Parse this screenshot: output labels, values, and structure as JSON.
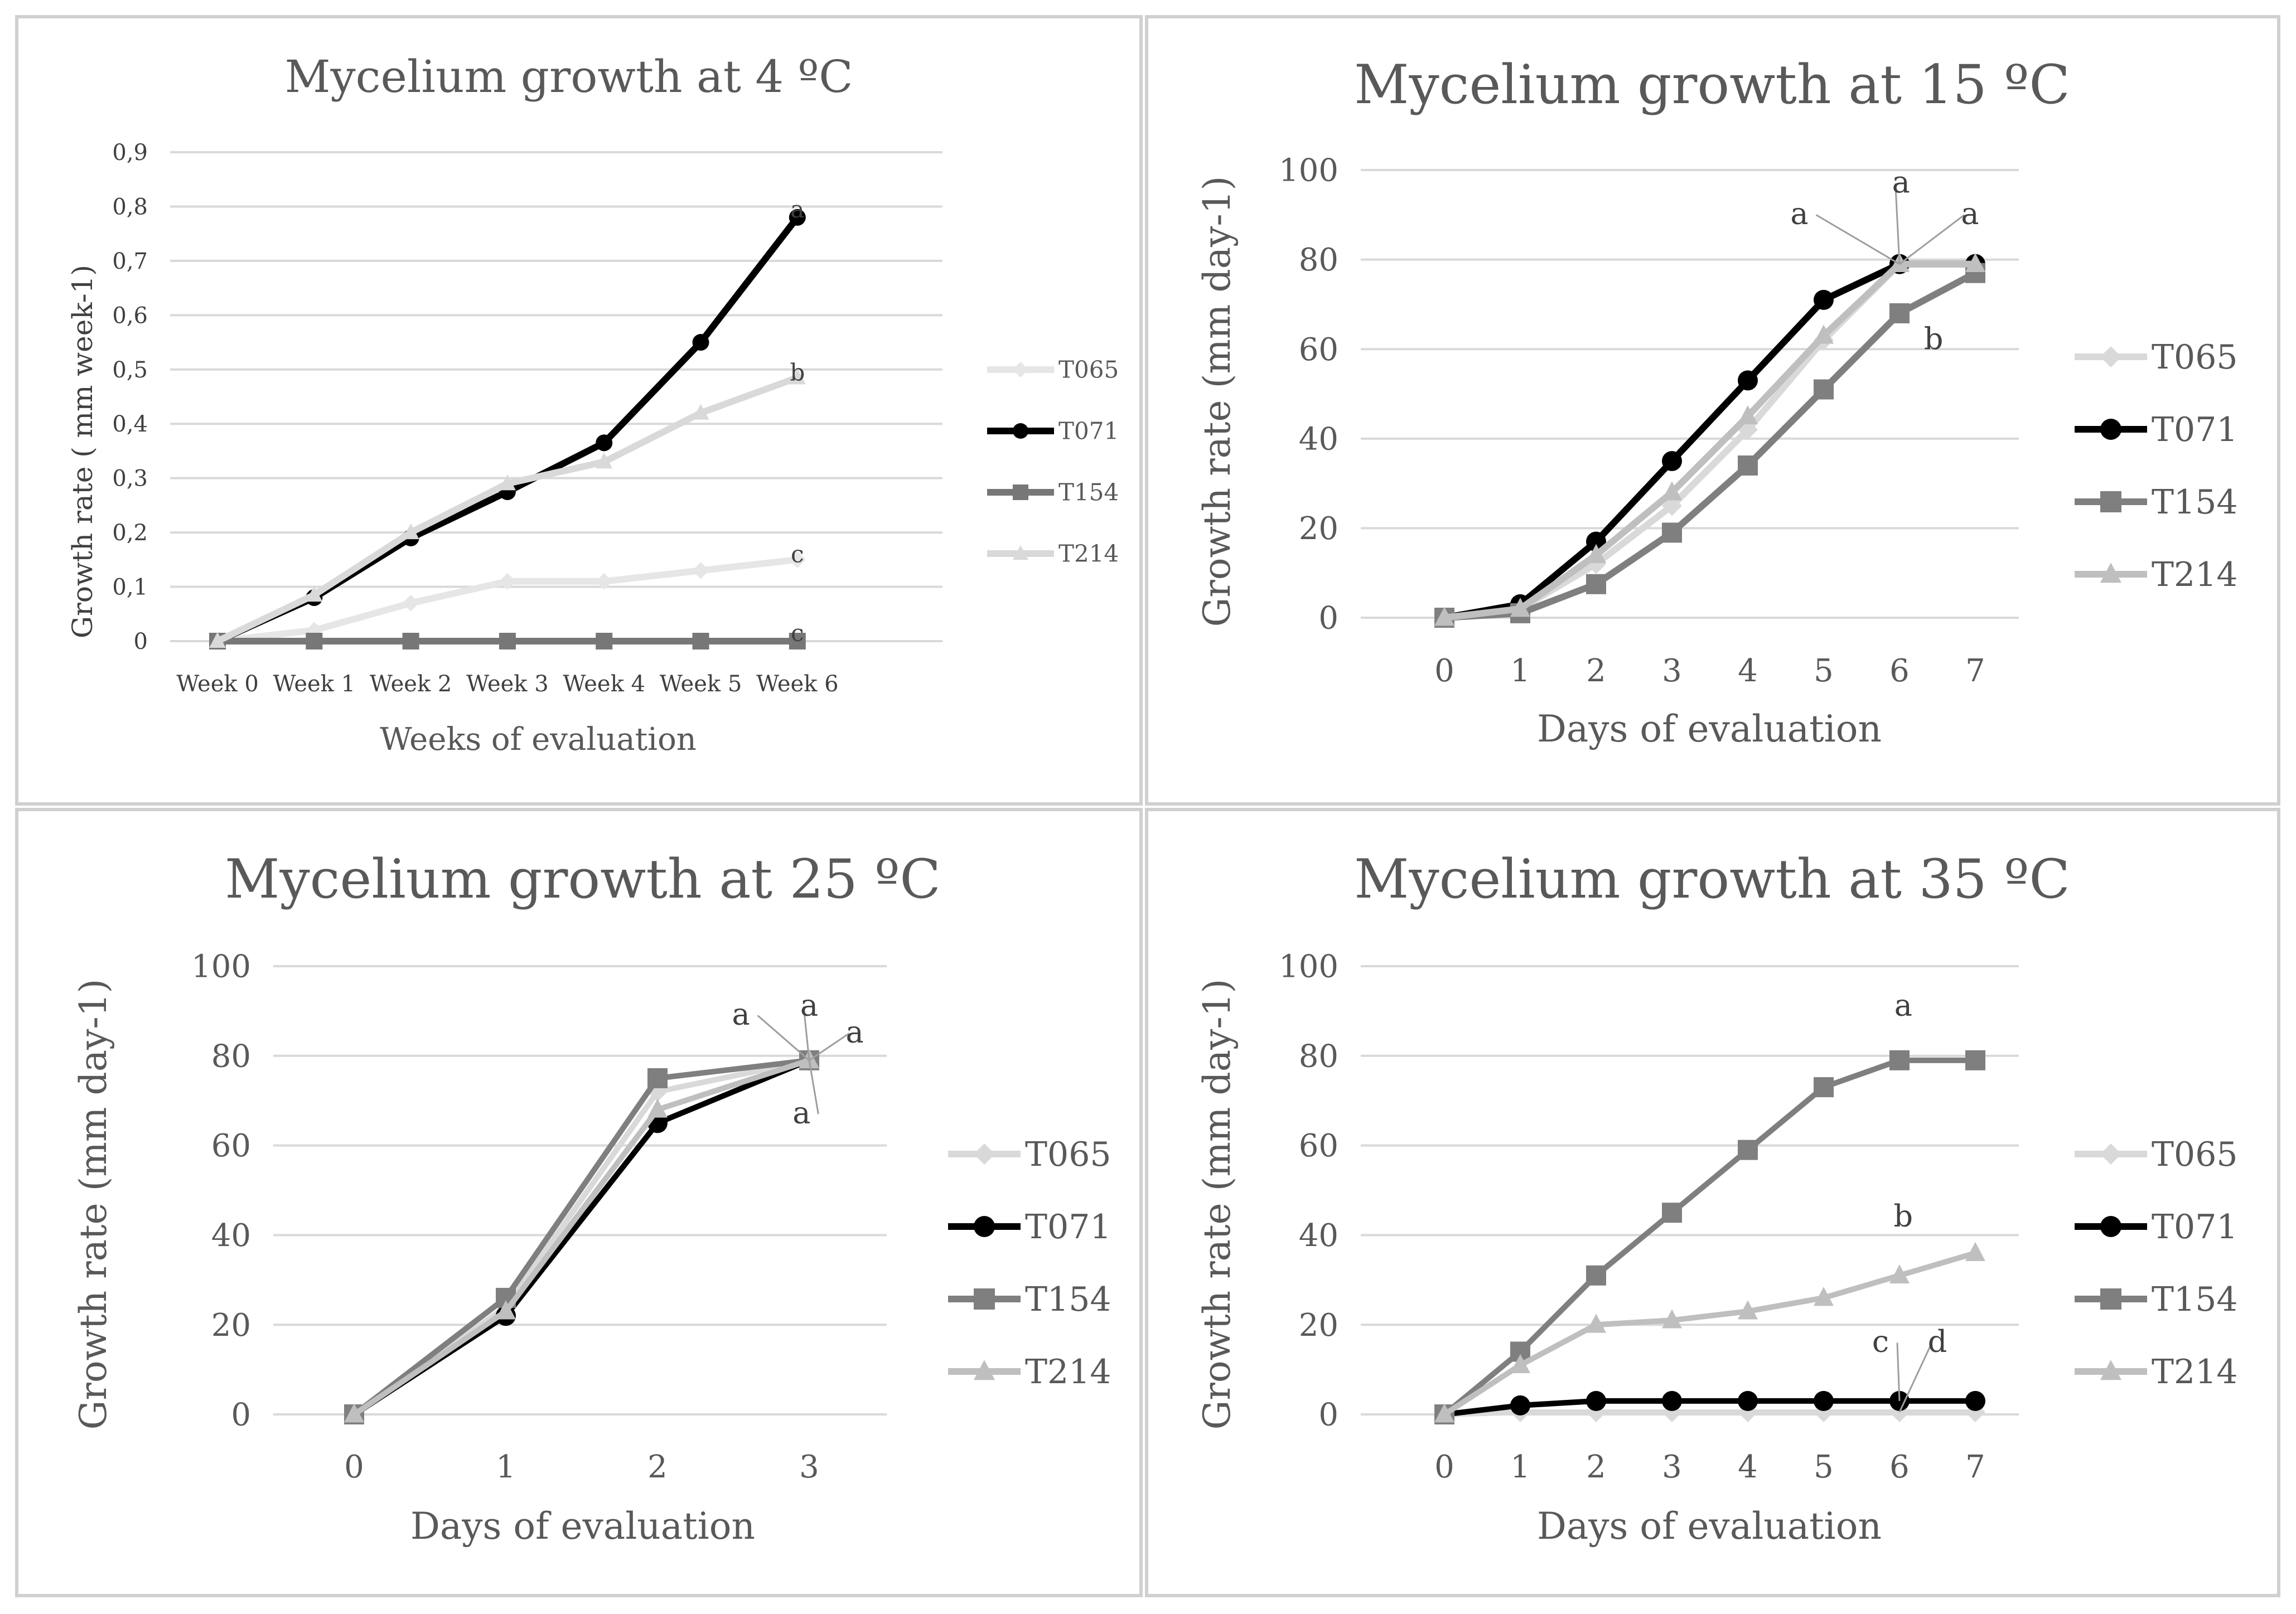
{
  "chart_data": [
    {
      "type": "line",
      "title": "Mycelium growth at 4 ºC",
      "xlabel": "Weeks of evaluation",
      "ylabel": "Growth rate ( mm week-1)",
      "categories": [
        "Week 0",
        "Week 1",
        "Week 2",
        "Week 3",
        "Week 4",
        "Week 5",
        "Week 6"
      ],
      "ylim": [
        0,
        0.9
      ],
      "yticks": [
        0,
        0.1,
        0.2,
        0.3,
        0.4,
        0.5,
        0.6,
        0.7,
        0.8,
        0.9
      ],
      "ytick_labels": [
        "0",
        "0,1",
        "0,2",
        "0,3",
        "0,4",
        "0,5",
        "0,6",
        "0,7",
        "0,8",
        "0,9"
      ],
      "grid": true,
      "legend": "right",
      "series": [
        {
          "name": "T065",
          "values": [
            0,
            0.02,
            0.07,
            0.11,
            0.11,
            0.13,
            0.15
          ],
          "color": "#e6e6e6",
          "marker": "diamond"
        },
        {
          "name": "T071",
          "values": [
            0,
            0.08,
            0.19,
            0.275,
            0.365,
            0.55,
            0.78
          ],
          "color": "#000000",
          "marker": "circle"
        },
        {
          "name": "T154",
          "values": [
            0,
            0,
            0,
            0,
            0,
            0,
            0
          ],
          "color": "#777777",
          "marker": "square"
        },
        {
          "name": "T214",
          "values": [
            0,
            0.085,
            0.2,
            0.29,
            0.33,
            0.42,
            0.485
          ],
          "color": "#d9d9d9",
          "marker": "triangle"
        }
      ],
      "annotations": [
        {
          "text": "a",
          "x": 6,
          "y": 0.78
        },
        {
          "text": "b",
          "x": 6,
          "y": 0.48
        },
        {
          "text": "c",
          "x": 6,
          "y": 0.145
        },
        {
          "text": "c",
          "x": 6,
          "y": 0
        }
      ]
    },
    {
      "type": "line",
      "title": "Mycelium growth at 15 ºC",
      "xlabel": "Days of evaluation",
      "ylabel": "Growth rate (mm day-1)",
      "categories": [
        "0",
        "1",
        "2",
        "3",
        "4",
        "5",
        "6",
        "7"
      ],
      "ylim": [
        0,
        100
      ],
      "yticks": [
        0,
        20,
        40,
        60,
        80,
        100
      ],
      "ytick_labels": [
        "0",
        "20",
        "40",
        "60",
        "80",
        "100"
      ],
      "grid": true,
      "legend": "right",
      "series": [
        {
          "name": "T065",
          "values": [
            0,
            2,
            12,
            25,
            42,
            62,
            79,
            79
          ],
          "color": "#d9d9d9",
          "marker": "diamond"
        },
        {
          "name": "T071",
          "values": [
            0,
            3,
            17,
            35,
            53,
            71,
            79,
            79
          ],
          "color": "#000000",
          "marker": "circle"
        },
        {
          "name": "T154",
          "values": [
            0,
            1,
            7.5,
            19,
            34,
            51,
            68,
            77
          ],
          "color": "#7f7f7f",
          "marker": "square"
        },
        {
          "name": "T214",
          "values": [
            0,
            2,
            14,
            28,
            45,
            63,
            79,
            79
          ],
          "color": "#bfbfbf",
          "marker": "triangle"
        }
      ],
      "annotations": [
        {
          "text": "a",
          "x": 4.68,
          "y": 88,
          "leader_to": [
            6,
            79
          ]
        },
        {
          "text": "a",
          "x": 6.02,
          "y": 95,
          "leader_to": [
            6,
            79
          ]
        },
        {
          "text": "a",
          "x": 6.93,
          "y": 88,
          "leader_to": [
            6,
            79
          ]
        },
        {
          "text": "b",
          "x": 6.45,
          "y": 60
        }
      ]
    },
    {
      "type": "line",
      "title": "Mycelium growth at 25 ºC",
      "xlabel": "Days of evaluation",
      "ylabel": "Growth rate (mm day-1)",
      "categories": [
        "0",
        "1",
        "2",
        "3"
      ],
      "ylim": [
        0,
        100
      ],
      "yticks": [
        0,
        20,
        40,
        60,
        80,
        100
      ],
      "ytick_labels": [
        "0",
        "20",
        "40",
        "60",
        "80",
        "100"
      ],
      "grid": true,
      "legend": "right",
      "series": [
        {
          "name": "T065",
          "values": [
            0,
            24,
            72,
            79
          ],
          "color": "#d9d9d9",
          "marker": "diamond"
        },
        {
          "name": "T071",
          "values": [
            0,
            22,
            65,
            79
          ],
          "color": "#000000",
          "marker": "circle"
        },
        {
          "name": "T154",
          "values": [
            0,
            26,
            75,
            79
          ],
          "color": "#7f7f7f",
          "marker": "square"
        },
        {
          "name": "T214",
          "values": [
            0,
            23,
            68,
            79
          ],
          "color": "#bfbfbf",
          "marker": "triangle"
        }
      ],
      "annotations": [
        {
          "text": "a",
          "x": 2.55,
          "y": 87,
          "leader_to": [
            3,
            79
          ]
        },
        {
          "text": "a",
          "x": 3.0,
          "y": 89,
          "leader_to": [
            3,
            79
          ]
        },
        {
          "text": "a",
          "x": 3.3,
          "y": 83,
          "leader_to": [
            3,
            79
          ]
        },
        {
          "text": "a",
          "x": 2.95,
          "y": 65,
          "leader_to": [
            3,
            79
          ]
        }
      ]
    },
    {
      "type": "line",
      "title": "Mycelium growth at 35 ºC",
      "xlabel": "Days of evaluation",
      "ylabel": "Growth rate (mm day-1)",
      "categories": [
        "0",
        "1",
        "2",
        "3",
        "4",
        "5",
        "6",
        "7"
      ],
      "ylim": [
        0,
        100
      ],
      "yticks": [
        0,
        20,
        40,
        60,
        80,
        100
      ],
      "ytick_labels": [
        "0",
        "20",
        "40",
        "60",
        "80",
        "100"
      ],
      "grid": true,
      "legend": "right",
      "series": [
        {
          "name": "T065",
          "values": [
            0,
            0.5,
            0.5,
            0.5,
            0.5,
            0.5,
            0.5,
            0.5
          ],
          "color": "#d9d9d9",
          "marker": "diamond"
        },
        {
          "name": "T071",
          "values": [
            0,
            2,
            3,
            3,
            3,
            3,
            3,
            3
          ],
          "color": "#000000",
          "marker": "circle"
        },
        {
          "name": "T154",
          "values": [
            0,
            14,
            31,
            45,
            59,
            73,
            79,
            79
          ],
          "color": "#7f7f7f",
          "marker": "square"
        },
        {
          "name": "T214",
          "values": [
            0,
            11,
            20,
            21,
            23,
            26,
            31,
            36
          ],
          "color": "#bfbfbf",
          "marker": "triangle"
        }
      ],
      "annotations": [
        {
          "text": "a",
          "x": 6.05,
          "y": 89
        },
        {
          "text": "b",
          "x": 6.05,
          "y": 42
        },
        {
          "text": "c",
          "x": 5.75,
          "y": 14,
          "leader_to": [
            6,
            3
          ]
        },
        {
          "text": "d",
          "x": 6.5,
          "y": 14,
          "leader_to": [
            6,
            0.5
          ]
        }
      ]
    }
  ]
}
